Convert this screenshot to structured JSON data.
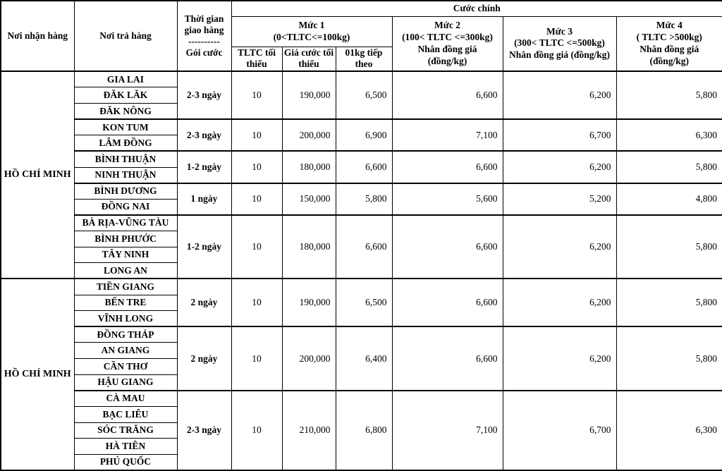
{
  "table": {
    "header": {
      "receiver": "Nơi nhận hàng",
      "sender": "Nơi trả hàng",
      "time_line1": "Thời gian",
      "time_line2": "giao hàng",
      "time_divider": "----------",
      "time_line3": "Gói cước",
      "main": "Cước chính",
      "muc1_title": "Mức 1",
      "muc1_range": "(0<TLTC<=100kg)",
      "muc1_sub": [
        "TLTC tối thiểu",
        "Giá cước tối thiểu",
        "01kg tiếp theo"
      ],
      "muc2_lines": [
        "Mức 2",
        "(100< TLTC <=300kg)",
        "Nhân đồng giá",
        "(đồng/kg)"
      ],
      "muc3_lines": [
        "Mức 3",
        "(300< TLTC <=500kg)",
        "Nhân đồng giá (đồng/kg)"
      ],
      "muc4_lines": [
        "Mức 4",
        "( TLTC >500kg)",
        "Nhân đồng giá",
        "(đồng/kg)"
      ]
    },
    "sections": [
      {
        "receiver": "HỒ CHÍ MINH",
        "groups": [
          {
            "provinces": [
              "GIA LAI",
              "ĐĂK LĂK",
              "ĐĂK NÔNG"
            ],
            "delivery_time": "2-3 ngày",
            "tltc_min": "10",
            "min_price": "190,000",
            "next_kg": "6,500",
            "muc2": "6,600",
            "muc3": "6,200",
            "muc4": "5,800"
          },
          {
            "provinces": [
              "KON TUM",
              "LÂM ĐỒNG"
            ],
            "delivery_time": "2-3 ngày",
            "tltc_min": "10",
            "min_price": "200,000",
            "next_kg": "6,900",
            "muc2": "7,100",
            "muc3": "6,700",
            "muc4": "6,300"
          },
          {
            "provinces": [
              "BÌNH THUẬN",
              "NINH THUẬN"
            ],
            "delivery_time": "1-2 ngày",
            "tltc_min": "10",
            "min_price": "180,000",
            "next_kg": "6,600",
            "muc2": "6,600",
            "muc3": "6,200",
            "muc4": "5,800"
          },
          {
            "provinces": [
              "BÌNH DƯƠNG",
              "ĐỒNG NAI"
            ],
            "delivery_time": "1 ngày",
            "tltc_min": "10",
            "min_price": "150,000",
            "next_kg": "5,800",
            "muc2": "5,600",
            "muc3": "5,200",
            "muc4": "4,800"
          },
          {
            "provinces": [
              "BÀ RỊA-VŨNG TÀU",
              "BÌNH PHƯỚC",
              "TÂY NINH",
              "LONG AN"
            ],
            "delivery_time": "1-2 ngày",
            "tltc_min": "10",
            "min_price": "180,000",
            "next_kg": "6,600",
            "muc2": "6,600",
            "muc3": "6,200",
            "muc4": "5,800"
          }
        ]
      },
      {
        "receiver": "HỒ CHÍ MINH",
        "groups": [
          {
            "provinces": [
              "TIỀN GIANG",
              "BẾN TRE",
              "VĨNH LONG"
            ],
            "delivery_time": "2 ngày",
            "tltc_min": "10",
            "min_price": "190,000",
            "next_kg": "6,500",
            "muc2": "6,600",
            "muc3": "6,200",
            "muc4": "5,800"
          },
          {
            "provinces": [
              "ĐỒNG THÁP",
              "AN GIANG",
              "CẦN THƠ",
              "HẬU GIANG"
            ],
            "delivery_time": "2 ngày",
            "tltc_min": "10",
            "min_price": "200,000",
            "next_kg": "6,400",
            "muc2": "6,600",
            "muc3": "6,200",
            "muc4": "5,800"
          },
          {
            "provinces": [
              "CÀ MAU",
              "BẠC LIÊU",
              "SÓC TRĂNG",
              "HÀ TIÊN",
              "PHÚ QUỐC"
            ],
            "delivery_time": "2-3 ngày",
            "tltc_min": "10",
            "min_price": "210,000",
            "next_kg": "6,800",
            "muc2": "7,100",
            "muc3": "6,700",
            "muc4": "6,300"
          }
        ]
      }
    ]
  }
}
